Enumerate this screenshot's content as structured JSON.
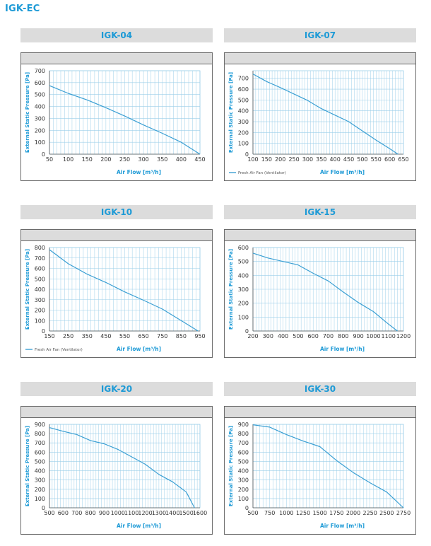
{
  "page_title": "IGK-EC",
  "chart_data": [
    {
      "type": "line",
      "title": "IGK-04",
      "xlabel": "Air Flow [m³/h]",
      "ylabel": "External Static Pressure [Pa]",
      "xticks": [
        50,
        100,
        150,
        200,
        250,
        300,
        350,
        400,
        450
      ],
      "yticks": [
        0,
        100,
        200,
        300,
        400,
        500,
        600,
        700
      ],
      "xlim": [
        50,
        450
      ],
      "ylim": [
        0,
        700
      ],
      "grid": true,
      "legend": "",
      "series": [
        {
          "name": "",
          "x": [
            50,
            100,
            150,
            200,
            250,
            300,
            350,
            400,
            450
          ],
          "y": [
            575,
            510,
            455,
            390,
            320,
            245,
            175,
            100,
            0
          ]
        }
      ]
    },
    {
      "type": "line",
      "title": "IGK-07",
      "xlabel": "Air Flow [m³/h]",
      "ylabel": "External Static Pressure [Pa]",
      "xticks": [
        100,
        150,
        200,
        250,
        300,
        350,
        400,
        450,
        500,
        550,
        600,
        650
      ],
      "yticks": [
        0,
        100,
        200,
        300,
        400,
        500,
        600,
        700
      ],
      "xlim": [
        100,
        650
      ],
      "ylim": [
        0,
        770
      ],
      "grid": true,
      "legend": "Fresh Air Fan (Ventilator)",
      "series": [
        {
          "name": "Fresh Air Fan (Ventilator)",
          "x": [
            100,
            150,
            200,
            250,
            300,
            350,
            400,
            450,
            500,
            550,
            600,
            630
          ],
          "y": [
            740,
            670,
            615,
            555,
            495,
            420,
            360,
            300,
            215,
            130,
            50,
            0
          ]
        }
      ]
    },
    {
      "type": "line",
      "title": "IGK-10",
      "xlabel": "Air Flow [m³/h]",
      "ylabel": "External Static Pressure [Pa]",
      "xticks": [
        150,
        250,
        350,
        450,
        550,
        650,
        750,
        850,
        950
      ],
      "yticks": [
        0,
        100,
        200,
        300,
        400,
        500,
        600,
        700,
        800
      ],
      "xlim": [
        150,
        950
      ],
      "ylim": [
        0,
        800
      ],
      "grid": true,
      "legend": "Fresh Air Fan (Ventilator)",
      "series": [
        {
          "name": "Fresh Air Fan (Ventilator)",
          "x": [
            150,
            250,
            350,
            450,
            550,
            650,
            750,
            850,
            940
          ],
          "y": [
            780,
            645,
            545,
            465,
            375,
            295,
            210,
            100,
            0
          ]
        }
      ]
    },
    {
      "type": "line",
      "title": "IGK-15",
      "xlabel": "Air Flow [m³/h]",
      "ylabel": "External Static Pressure [Pa]",
      "xticks": [
        200,
        300,
        400,
        500,
        600,
        700,
        800,
        900,
        1000,
        1100,
        1200
      ],
      "yticks": [
        0,
        100,
        200,
        300,
        400,
        500,
        600
      ],
      "xlim": [
        200,
        1200
      ],
      "ylim": [
        0,
        600
      ],
      "grid": true,
      "legend": "",
      "series": [
        {
          "name": "",
          "x": [
            200,
            300,
            400,
            500,
            600,
            700,
            800,
            900,
            1000,
            1100,
            1160
          ],
          "y": [
            560,
            525,
            500,
            475,
            415,
            360,
            280,
            205,
            140,
            50,
            0
          ]
        }
      ]
    },
    {
      "type": "line",
      "title": "IGK-20",
      "xlabel": "Air Flow [m³/h]",
      "ylabel": "External Static Pressure [Pa]",
      "xticks": [
        500,
        600,
        700,
        800,
        900,
        1000,
        1100,
        1200,
        1300,
        1400,
        1500,
        1600
      ],
      "yticks": [
        0,
        100,
        200,
        300,
        400,
        500,
        600,
        700,
        800,
        900
      ],
      "xlim": [
        500,
        1600
      ],
      "ylim": [
        0,
        900
      ],
      "grid": true,
      "legend": "",
      "series": [
        {
          "name": "",
          "x": [
            500,
            600,
            700,
            800,
            900,
            1000,
            1100,
            1200,
            1300,
            1400,
            1500,
            1560
          ],
          "y": [
            865,
            825,
            790,
            725,
            690,
            630,
            550,
            470,
            360,
            280,
            170,
            0
          ]
        }
      ]
    },
    {
      "type": "line",
      "title": "IGK-30",
      "xlabel": "Air Flow [m³/h]",
      "ylabel": "External Static Pressure [Pa]",
      "xticks": [
        500,
        750,
        1000,
        1250,
        1500,
        1750,
        2000,
        2250,
        2500,
        2750
      ],
      "yticks": [
        0,
        100,
        200,
        300,
        400,
        500,
        600,
        700,
        800,
        900
      ],
      "xlim": [
        500,
        2750
      ],
      "ylim": [
        0,
        900
      ],
      "grid": true,
      "legend": "",
      "series": [
        {
          "name": "",
          "x": [
            500,
            750,
            1000,
            1250,
            1500,
            1750,
            2000,
            2250,
            2500,
            2750
          ],
          "y": [
            895,
            870,
            790,
            720,
            660,
            510,
            380,
            270,
            170,
            0
          ]
        }
      ]
    }
  ],
  "colors": {
    "accent": "#1d9ad6",
    "line": "#3a9fd3",
    "grid": "#9ccfe9",
    "header_bg": "#dcdcdc",
    "frame": "#6a6a6a"
  }
}
